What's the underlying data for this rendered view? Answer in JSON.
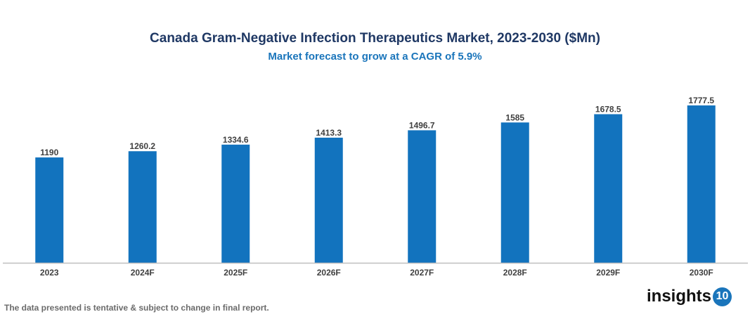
{
  "chart_data": {
    "type": "bar",
    "title": "Canada Gram-Negative Infection Therapeutics Market, 2023-2030 ($Mn)",
    "subtitle": "Market forecast to grow at a CAGR of 5.9%",
    "categories": [
      "2023",
      "2024F",
      "2025F",
      "2026F",
      "2027F",
      "2028F",
      "2029F",
      "2030F"
    ],
    "values": [
      1190,
      1260.2,
      1334.6,
      1413.3,
      1496.7,
      1585,
      1678.5,
      1777.5
    ],
    "value_labels": [
      "1190",
      "1260.2",
      "1334.6",
      "1413.3",
      "1496.7",
      "1585",
      "1678.5",
      "1777.5"
    ],
    "xlabel": "",
    "ylabel": "",
    "ylim": [
      0,
      2000
    ],
    "grid": false,
    "bar_color": "#1273be"
  },
  "footnote": "The data presented is tentative & subject to change in final report.",
  "logo": {
    "text": "insights",
    "badge": "10",
    "color": "#1a75bb"
  }
}
